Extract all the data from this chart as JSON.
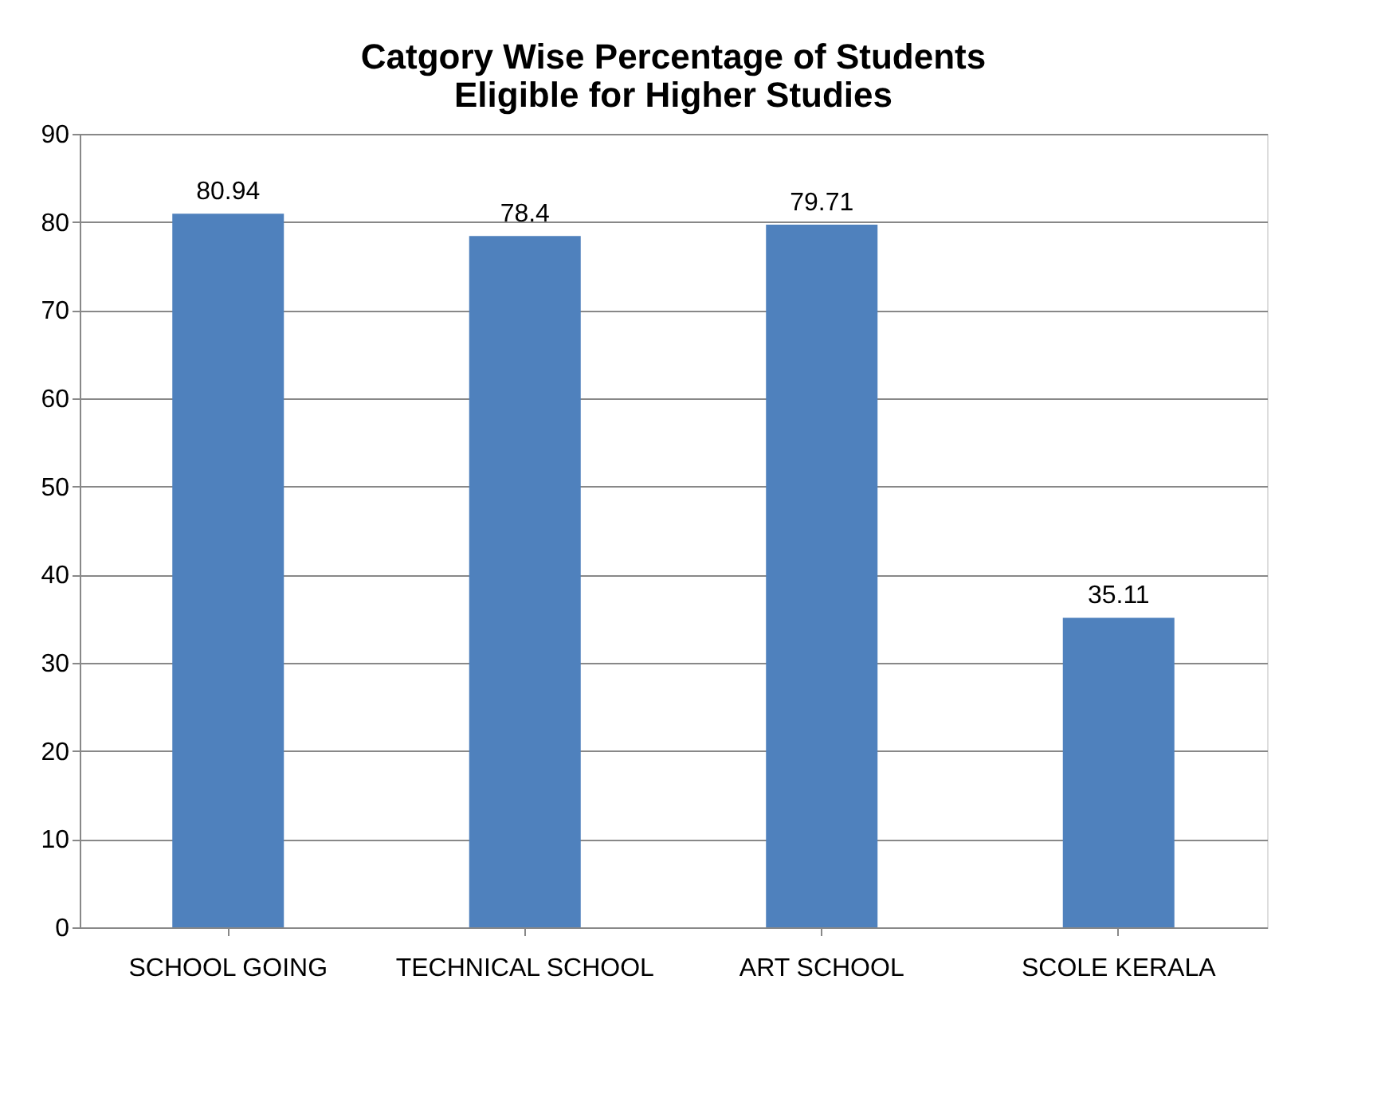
{
  "chart_data": {
    "type": "bar",
    "title": "Catgory Wise Percentage of Students Eligible for Higher Studies",
    "categories": [
      "SCHOOL GOING",
      "TECHNICAL SCHOOL",
      "ART SCHOOL",
      "SCOLE KERALA"
    ],
    "values": [
      80.94,
      78.4,
      79.71,
      35.11
    ],
    "color": "#4f81bd",
    "ylim": [
      0,
      90
    ],
    "yticks": [
      0,
      10,
      20,
      30,
      40,
      50,
      60,
      70,
      80,
      90
    ],
    "grid": "y",
    "data_labels": true
  }
}
